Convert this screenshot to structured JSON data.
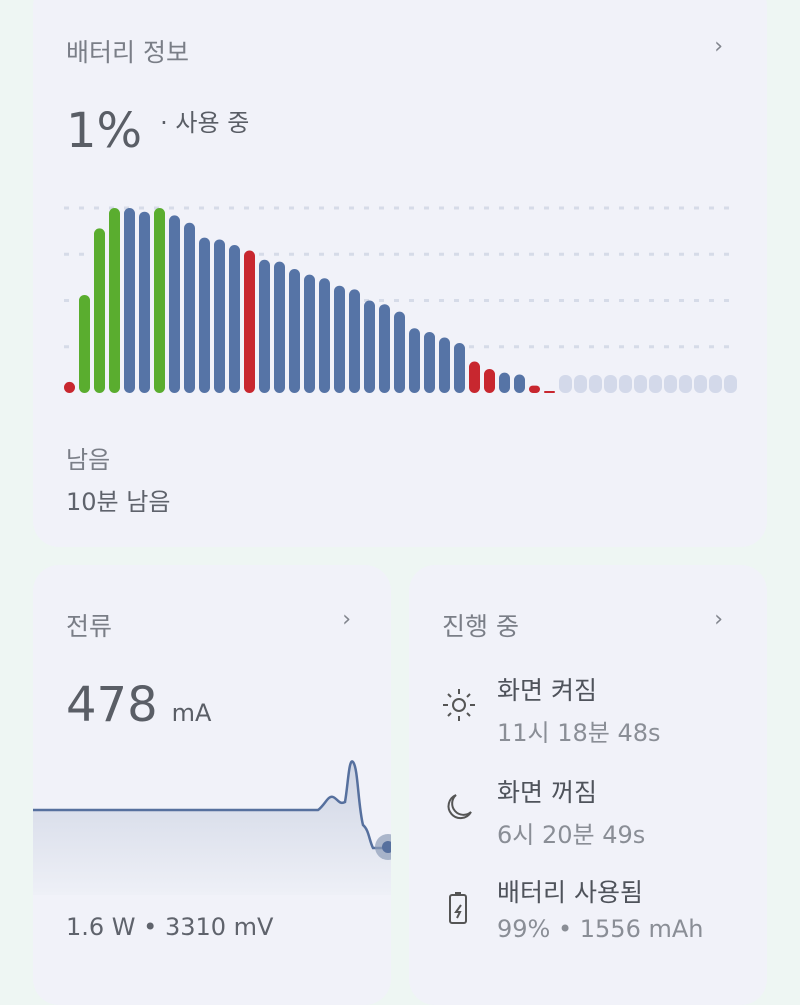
{
  "battery": {
    "title": "배터리 정보",
    "level": "1%",
    "status": "· 사용 중",
    "remaining_label": "남음",
    "remaining_value": "10분 남음",
    "colors": {
      "charging": "#5aad2f",
      "discharging": "#5674a6",
      "low": "#c8272f",
      "future": "#d3d9ea"
    },
    "usage_history_percent": [
      6,
      53,
      89,
      100,
      100,
      98,
      100,
      96,
      92,
      84,
      83,
      80,
      77,
      72,
      71,
      67,
      64,
      62,
      58,
      56,
      50,
      48,
      44,
      35,
      33,
      30,
      27,
      17,
      13,
      11,
      10,
      4,
      1
    ],
    "usage_history_state": [
      "low",
      "charging",
      "charging",
      "charging",
      "discharging",
      "discharging",
      "charging",
      "discharging",
      "discharging",
      "discharging",
      "discharging",
      "discharging",
      "low",
      "discharging",
      "discharging",
      "discharging",
      "discharging",
      "discharging",
      "discharging",
      "discharging",
      "discharging",
      "discharging",
      "discharging",
      "discharging",
      "discharging",
      "discharging",
      "discharging",
      "low",
      "low",
      "discharging",
      "discharging",
      "low",
      "low"
    ],
    "future_slots": 12
  },
  "current": {
    "title": "전류",
    "value": "478",
    "unit": "mA",
    "footer": "1.6 W • 3310 mV"
  },
  "ongoing": {
    "title": "진행 중",
    "items": [
      {
        "icon": "sun-icon",
        "label": "화면 켜짐",
        "value": "11시 18분 48s"
      },
      {
        "icon": "moon-icon",
        "label": "화면 꺼짐",
        "value": "6시 20분 49s"
      },
      {
        "icon": "battery-charging-icon",
        "label": "배터리 사용됨",
        "value": "99% • 1556 mAh"
      }
    ]
  }
}
